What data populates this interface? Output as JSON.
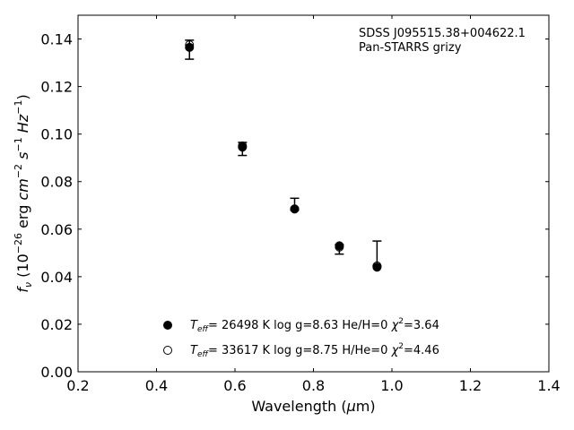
{
  "chart_data": {
    "type": "scatter",
    "annotation": [
      "SDSS J095515.38+004622.1",
      "Pan-STARRS grizy"
    ],
    "xlabel": "Wavelength (μm)",
    "ylabel": "f_ν (10^-26 erg cm^-2 s^-1 Hz^-1)",
    "xlim": [
      0.2,
      1.4
    ],
    "ylim": [
      0.0,
      0.15
    ],
    "x_ticks": [
      "0.2",
      "0.4",
      "0.6",
      "0.8",
      "1.0",
      "1.2",
      "1.4"
    ],
    "y_ticks": [
      "0.00",
      "0.02",
      "0.04",
      "0.06",
      "0.08",
      "0.10",
      "0.12",
      "0.14"
    ],
    "grid": false,
    "legend_position": "bottom-center",
    "observed": {
      "x": [
        0.484,
        0.619,
        0.752,
        0.866,
        0.962
      ],
      "y": [
        0.1355,
        0.094,
        0.0685,
        0.0525,
        0.0445
      ],
      "yerr_low": [
        0.1315,
        0.091,
        0.068,
        0.0495,
        0.0445
      ],
      "yerr_high": [
        0.1395,
        0.0965,
        0.073,
        0.0535,
        0.055
      ]
    },
    "series": [
      {
        "name": "T_eff= 26498 K  log g=8.63  He/H=0  χ²=3.64",
        "marker": "filled-circle",
        "x": [
          0.484,
          0.619,
          0.752,
          0.866,
          0.962
        ],
        "y": [
          0.1365,
          0.0945,
          0.0685,
          0.053,
          0.044
        ]
      },
      {
        "name": "T_eff= 33617 K  log g=8.75  H/He=0  χ²=4.46",
        "marker": "open-circle",
        "x": [
          0.484,
          0.619,
          0.752,
          0.866,
          0.962
        ],
        "y": [
          0.1375,
          0.095,
          0.0685,
          0.0525,
          0.0445
        ]
      }
    ],
    "legend": {
      "entries": [
        {
          "teff": "26498",
          "rest": "= 26498 K  log g=8.63  He/H=0  ",
          "chi": "=3.64"
        },
        {
          "teff": "33617",
          "rest": "= 33617 K  log g=8.75  H/He=0  ",
          "chi": "=4.46"
        }
      ]
    }
  }
}
